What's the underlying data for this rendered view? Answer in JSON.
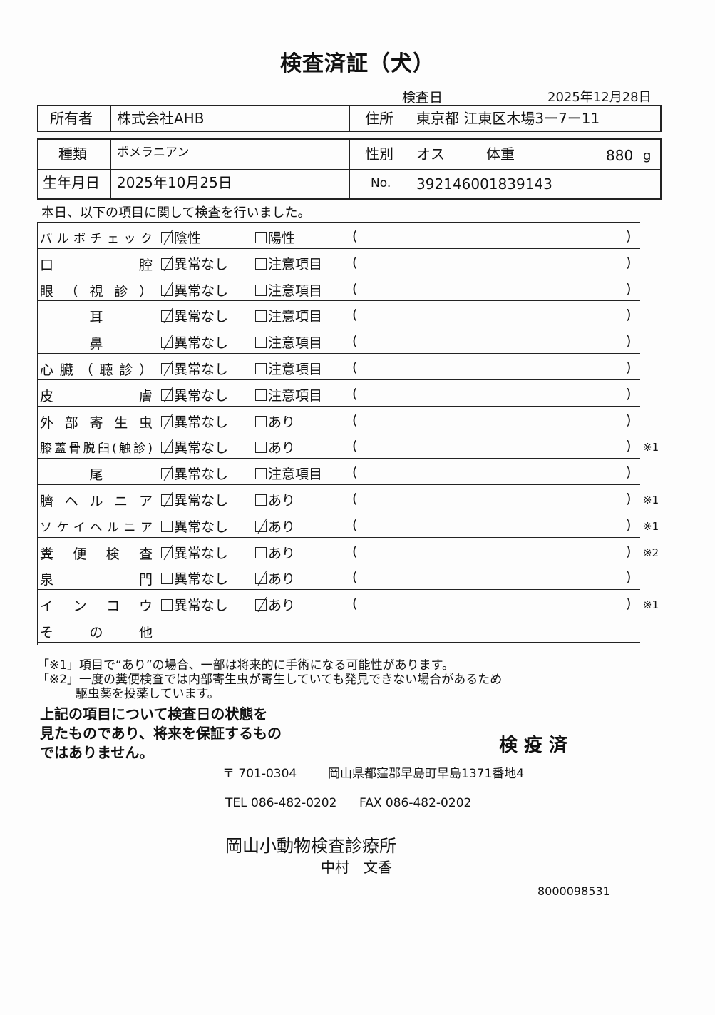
{
  "title": "検査済証（犬）",
  "inspection_date_label": "検査日",
  "inspection_date": "2025年12月28日",
  "owner": {
    "label": "所有者",
    "value": "株式会社AHB",
    "address_label": "住所",
    "address": "東京都 江東区木場3ー7ー11"
  },
  "animal": {
    "breed_label": "種類",
    "breed": "ポメラニアン",
    "sex_label": "性別",
    "sex": "オス",
    "weight_label": "体重",
    "weight": "880",
    "weight_unit": "g",
    "birth_label": "生年月日",
    "birth": "2025年10月25日",
    "no_label": "No.",
    "no": "392146001839143"
  },
  "intro": "本日、以下の項目に関して検査を行いました。",
  "rows": [
    {
      "label": "パルボチェック",
      "opt1": "陰性",
      "opt2": "陽性",
      "checked": 1,
      "note": ""
    },
    {
      "label": "口腔",
      "opt1": "異常なし",
      "opt2": "注意項目",
      "checked": 1,
      "note": ""
    },
    {
      "label": "眼（視診）",
      "opt1": "異常なし",
      "opt2": "注意項目",
      "checked": 1,
      "note": ""
    },
    {
      "label": "耳",
      "opt1": "異常なし",
      "opt2": "注意項目",
      "checked": 1,
      "note": "",
      "center": true
    },
    {
      "label": "鼻",
      "opt1": "異常なし",
      "opt2": "注意項目",
      "checked": 1,
      "note": "",
      "center": true
    },
    {
      "label": "心臓（聴診）",
      "opt1": "異常なし",
      "opt2": "注意項目",
      "checked": 1,
      "note": ""
    },
    {
      "label": "皮膚",
      "opt1": "異常なし",
      "opt2": "注意項目",
      "checked": 1,
      "note": ""
    },
    {
      "label": "外部寄生虫",
      "opt1": "異常なし",
      "opt2": "あり",
      "checked": 1,
      "note": ""
    },
    {
      "label": "膝蓋骨脱臼(触診)",
      "opt1": "異常なし",
      "opt2": "あり",
      "checked": 1,
      "note": "※1"
    },
    {
      "label": "尾",
      "opt1": "異常なし",
      "opt2": "注意項目",
      "checked": 1,
      "note": "",
      "center": true
    },
    {
      "label": "臍ヘルニア",
      "opt1": "異常なし",
      "opt2": "あり",
      "checked": 1,
      "note": "※1"
    },
    {
      "label": "ソケイヘルニア",
      "opt1": "異常なし",
      "opt2": "あり",
      "checked": 2,
      "note": "※1"
    },
    {
      "label": "糞便検査",
      "opt1": "異常なし",
      "opt2": "あり",
      "checked": 1,
      "note": "※2"
    },
    {
      "label": "泉門",
      "opt1": "異常なし",
      "opt2": "あり",
      "checked": 2,
      "note": ""
    },
    {
      "label": "インコウ",
      "opt1": "異常なし",
      "opt2": "あり",
      "checked": 2,
      "note": "※1"
    }
  ],
  "other_label": "その他",
  "paren_open": "(",
  "paren_close": ")",
  "footnote1": "「※1」項目で“あり”の場合、一部は将来的に手術になる可能性があります。",
  "footnote2a": "「※2」一度の糞便検査では内部寄生虫が寄生していても発見できない場合があるため",
  "footnote2b": "駆虫薬を投薬しています。",
  "disclaimer": [
    "上記の項目について検査日の状態を",
    "見たものであり、将来を保証するもの",
    "ではありません。"
  ],
  "stamp": "検 疫 済",
  "postal": "〒 701-0304",
  "address": "岡山県都窪郡早島町早島1371番地4",
  "tel": "TEL 086-482-0202",
  "fax": "FAX 086-482-0202",
  "clinic": "岡山小動物検査診療所",
  "person": "中村　文香",
  "doc_number": "8000098531"
}
